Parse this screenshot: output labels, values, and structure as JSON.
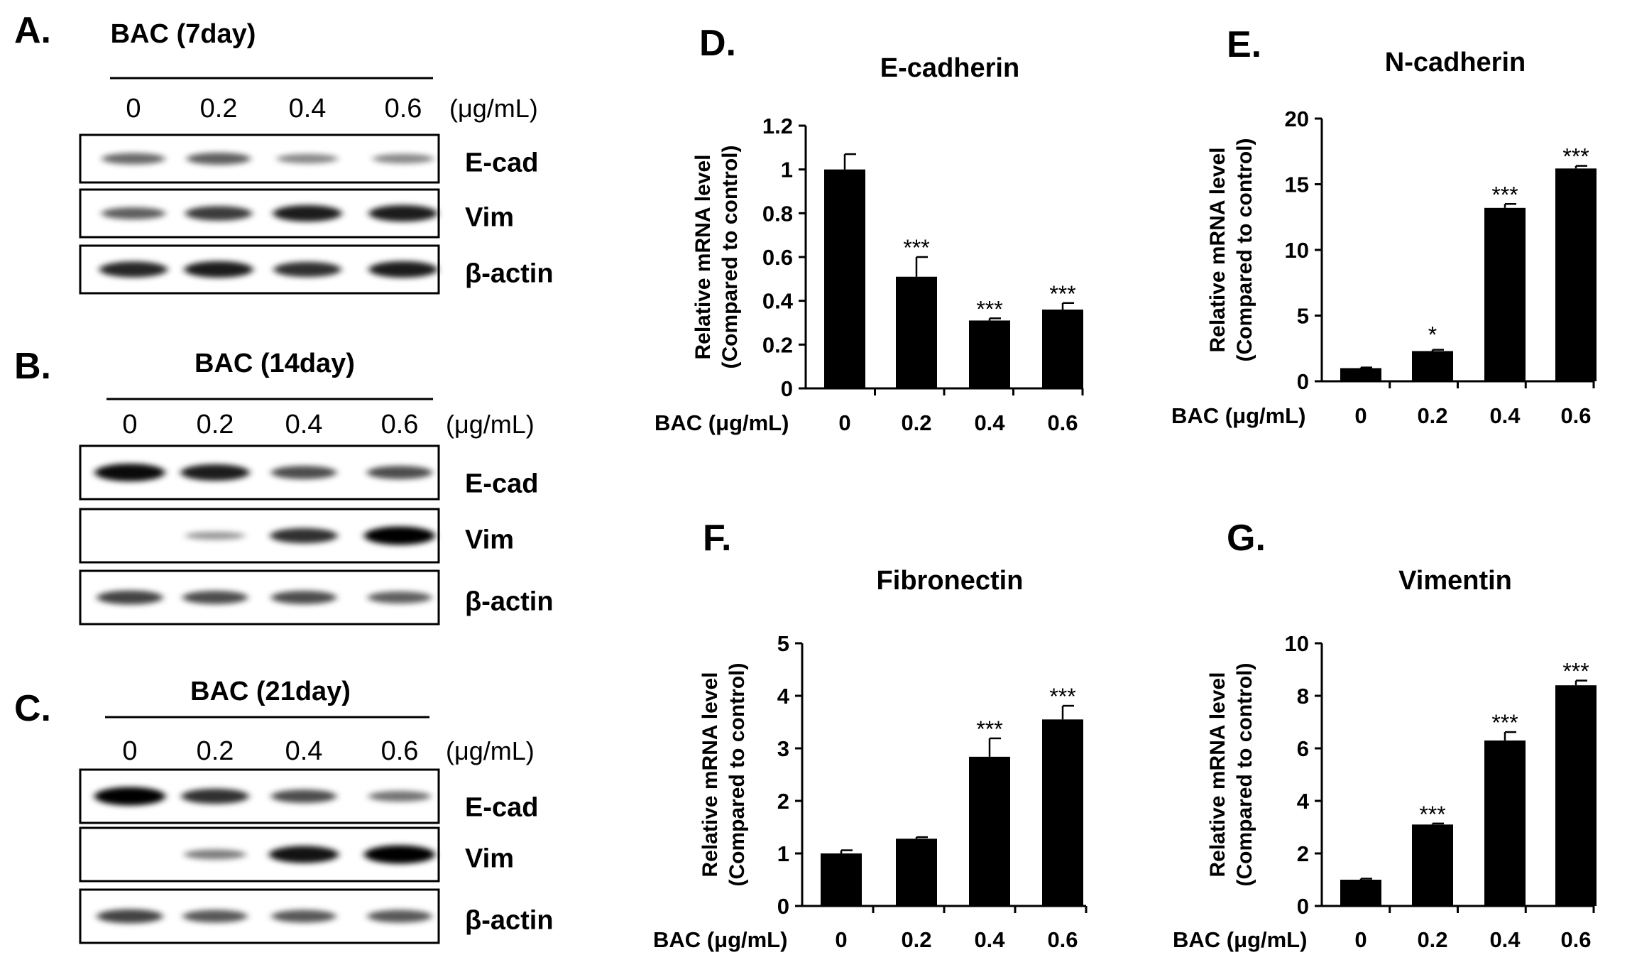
{
  "western_blots": [
    {
      "panel": "A.",
      "title": "BAC (7day)",
      "lanes": [
        "0",
        "0.2",
        "0.4",
        "0.6"
      ],
      "unit": "(μg/mL)",
      "rows": [
        {
          "label": "E-cad",
          "intensities": [
            0.45,
            0.5,
            0.3,
            0.3
          ]
        },
        {
          "label": "Vim",
          "intensities": [
            0.5,
            0.7,
            0.85,
            0.85
          ]
        },
        {
          "label": "β-actin",
          "intensities": [
            0.8,
            0.85,
            0.75,
            0.85
          ]
        }
      ]
    },
    {
      "panel": "B.",
      "title": "BAC (14day)",
      "lanes": [
        "0",
        "0.2",
        "0.4",
        "0.6"
      ],
      "unit": "(μg/mL)",
      "rows": [
        {
          "label": "E-cad",
          "intensities": [
            0.95,
            0.85,
            0.6,
            0.6
          ]
        },
        {
          "label": "Vim",
          "intensities": [
            0.0,
            0.2,
            0.75,
            1.0
          ]
        },
        {
          "label": "β-actin",
          "intensities": [
            0.65,
            0.6,
            0.6,
            0.5
          ]
        }
      ]
    },
    {
      "panel": "C.",
      "title": "BAC (21day)",
      "lanes": [
        "0",
        "0.2",
        "0.4",
        "0.6"
      ],
      "unit": "(μg/mL)",
      "rows": [
        {
          "label": "E-cad",
          "intensities": [
            1.0,
            0.75,
            0.6,
            0.4
          ]
        },
        {
          "label": "Vim",
          "intensities": [
            0.0,
            0.35,
            0.9,
            1.0
          ]
        },
        {
          "label": "β-actin",
          "intensities": [
            0.65,
            0.55,
            0.55,
            0.55
          ]
        }
      ]
    }
  ],
  "chart_data": [
    {
      "panel": "D.",
      "type": "bar",
      "title": "E-cadherin",
      "xlabel": "BAC (μg/mL)",
      "ylabel": [
        "Relative mRNA level",
        "(Compared to control)"
      ],
      "categories": [
        "0",
        "0.2",
        "0.4",
        "0.6"
      ],
      "values": [
        1.0,
        0.51,
        0.31,
        0.36
      ],
      "errors": [
        0.07,
        0.09,
        0.01,
        0.03
      ],
      "significance": [
        "",
        "***",
        "***",
        "***"
      ],
      "ylim": [
        0,
        1.2
      ],
      "yticks": [
        "0",
        "0.2",
        "0.4",
        "0.6",
        "0.8",
        "1",
        "1.2"
      ],
      "bar_color": "#000000"
    },
    {
      "panel": "E.",
      "type": "bar",
      "title": "N-cadherin",
      "xlabel": "BAC (μg/mL)",
      "ylabel": [
        "Relative mRNA level",
        "(Compared to control)"
      ],
      "categories": [
        "0",
        "0.2",
        "0.4",
        "0.6"
      ],
      "values": [
        1.0,
        2.3,
        13.2,
        16.2
      ],
      "errors": [
        0.05,
        0.1,
        0.3,
        0.2
      ],
      "significance": [
        "",
        "*",
        "***",
        "***"
      ],
      "ylim": [
        0,
        20
      ],
      "yticks": [
        "0",
        "5",
        "10",
        "15",
        "20"
      ],
      "bar_color": "#000000"
    },
    {
      "panel": "F.",
      "type": "bar",
      "title": "Fibronectin",
      "xlabel": "BAC (μg/mL)",
      "ylabel": [
        "Relative mRNA level",
        "(Compared to control)"
      ],
      "categories": [
        "0",
        "0.2",
        "0.4",
        "0.6"
      ],
      "values": [
        1.0,
        1.28,
        2.84,
        3.55
      ],
      "errors": [
        0.06,
        0.03,
        0.35,
        0.26
      ],
      "significance": [
        "",
        "",
        "***",
        "***"
      ],
      "ylim": [
        0,
        5
      ],
      "yticks": [
        "0",
        "1",
        "2",
        "3",
        "4",
        "5"
      ],
      "bar_color": "#000000"
    },
    {
      "panel": "G.",
      "type": "bar",
      "title": "Vimentin",
      "xlabel": "BAC (μg/mL)",
      "ylabel": [
        "Relative mRNA level",
        "(Compared to control)"
      ],
      "categories": [
        "0",
        "0.2",
        "0.4",
        "0.6"
      ],
      "values": [
        1.0,
        3.1,
        6.3,
        8.4
      ],
      "errors": [
        0.04,
        0.04,
        0.32,
        0.18
      ],
      "significance": [
        "",
        "***",
        "***",
        "***"
      ],
      "ylim": [
        0,
        10
      ],
      "yticks": [
        "0",
        "2",
        "4",
        "6",
        "8",
        "10"
      ],
      "bar_color": "#000000"
    }
  ]
}
